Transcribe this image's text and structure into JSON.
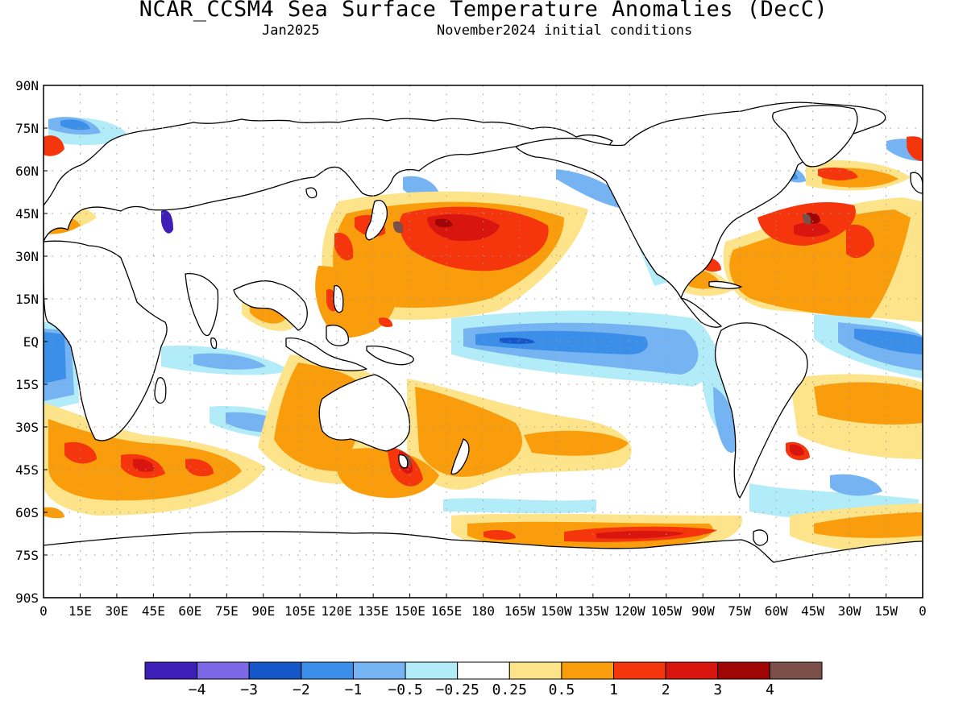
{
  "header": {
    "title": "NCAR_CCSM4 Sea Surface Temperature Anomalies (DecC)",
    "valid_month": "Jan2025",
    "initial_conditions": "November2024 initial conditions"
  },
  "map": {
    "lat_labels": [
      "90N",
      "75N",
      "60N",
      "45N",
      "30N",
      "15N",
      "EQ",
      "15S",
      "30S",
      "45S",
      "60S",
      "75S",
      "90S"
    ],
    "lon_labels": [
      "0",
      "15E",
      "30E",
      "45E",
      "60E",
      "75E",
      "90E",
      "105E",
      "120E",
      "135E",
      "150E",
      "165E",
      "180",
      "165W",
      "150W",
      "135W",
      "120W",
      "105W",
      "90W",
      "75W",
      "60W",
      "45W",
      "30W",
      "15W",
      "0"
    ],
    "grid": "dotted",
    "projection": "cylindrical equidistant"
  },
  "colorbar": {
    "colors": [
      "#3d1fb8",
      "#7c68e6",
      "#1556c8",
      "#3c8fe8",
      "#76b3f2",
      "#b2ecf8",
      "#ffffff",
      "#fde48a",
      "#f99d0c",
      "#f5350c",
      "#d8150f",
      "#a00506",
      "#7a5048"
    ],
    "tick_labels": [
      "-4",
      "-3",
      "-2",
      "-1",
      "-0.5",
      "-0.25",
      "0.25",
      "0.5",
      "1",
      "2",
      "3",
      "4"
    ]
  },
  "colors": {
    "land": "#ffffff",
    "coastline": "#000000"
  }
}
